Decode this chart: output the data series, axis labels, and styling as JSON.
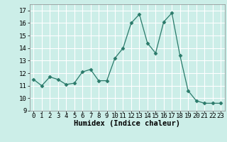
{
  "x": [
    0,
    1,
    2,
    3,
    4,
    5,
    6,
    7,
    8,
    9,
    10,
    11,
    12,
    13,
    14,
    15,
    16,
    17,
    18,
    19,
    20,
    21,
    22,
    23
  ],
  "y": [
    11.5,
    11.0,
    11.7,
    11.5,
    11.1,
    11.2,
    12.1,
    12.3,
    11.4,
    11.4,
    13.2,
    14.0,
    16.0,
    16.7,
    14.4,
    13.6,
    16.1,
    16.8,
    13.4,
    10.6,
    9.8,
    9.6,
    9.6,
    9.6
  ],
  "line_color": "#2a7a6a",
  "marker": "D",
  "marker_size": 2.5,
  "bg_plot": "#cceee8",
  "bg_fig": "#cceee8",
  "grid_color": "#ffffff",
  "xlabel": "Humidex (Indice chaleur)",
  "ylim": [
    9,
    17.5
  ],
  "yticks": [
    9,
    10,
    11,
    12,
    13,
    14,
    15,
    16,
    17
  ],
  "xticks": [
    0,
    1,
    2,
    3,
    4,
    5,
    6,
    7,
    8,
    9,
    10,
    11,
    12,
    13,
    14,
    15,
    16,
    17,
    18,
    19,
    20,
    21,
    22,
    23
  ],
  "font_size_label": 7.5,
  "font_size_tick": 6.5
}
